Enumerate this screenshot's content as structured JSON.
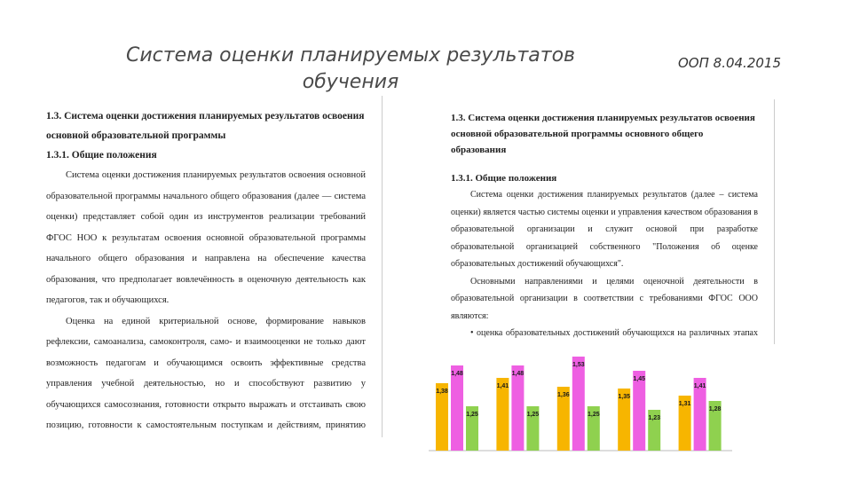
{
  "slide": {
    "title_line1": "Система оценки планируемых результатов",
    "title_line2": "обучения",
    "tag": "ООП 8.04.2015"
  },
  "left_doc": {
    "heading_a": "1.3.   Система оценки достижения планируемых результатов освоения",
    "heading_b": "основной образовательной программы",
    "subheading": "1.3.1. Общие положения",
    "para1": "Система оценки достижения планируемых результатов освоения основной образовательной программы начального общего образования (далее — система оценки) представляет собой один из инструментов реализации требований ФГОС НОО к результатам освоения основной образовательной программы начального общего образования и направлена на обеспечение качества образования, что предполагает вовлечённость в оценочную деятельность как педагогов, так и обучающихся.",
    "para2": "Оценка на единой критериальной основе, формирование навыков рефлексии, самоанализа, самоконтроля, само- и взаимооценки не только дают возможность педагогам и обучающимся освоить эффективные средства управления учебной деятельностью, но и способствуют развитию у обучающихся самосознания, готовности открыто выражать и отстаивать свою позицию, готовности к самостоятельным поступкам и действиям, принятию ответственности за их результаты."
  },
  "right_doc": {
    "heading": "1.3. Система оценки достижения планируемых результатов освоения основной образовательной программы основного общего образования",
    "subheading": "1.3.1. Общие положения",
    "para1": "Система оценки достижения планируемых результатов (далее – система оценки) является частью системы оценки и управления качеством образования в образовательной организации и служит основой при разработке образовательной организацией собственного \"Положения об оценке образовательных достижений обучающихся\".",
    "para2": "Основными направлениями и целями оценочной деятельности в образовательной организации в соответствии с требованиями ФГОС ООО являются:",
    "para3": "• оценка образовательных достижений обучающихся на различных этапах обучения как основа их промежуточной и итоговой аттестации, а также основа процедур внутреннего мониторинга образовательной организации,"
  },
  "chart_data": {
    "type": "bar",
    "categories": [
      "",
      "",
      "",
      "",
      ""
    ],
    "series": [
      {
        "color": "#f7b500",
        "values": [
          1.38,
          1.41,
          1.36,
          1.35,
          1.31
        ]
      },
      {
        "color": "#ee5fe2",
        "values": [
          1.48,
          1.48,
          1.53,
          1.45,
          1.41
        ]
      },
      {
        "color": "#8fd14f",
        "values": [
          1.25,
          1.25,
          1.25,
          1.23,
          1.28
        ]
      }
    ],
    "data_labels": [
      [
        "1,38",
        "1,41",
        "1,36",
        "1,35",
        "1,31"
      ],
      [
        "1,48",
        "1,48",
        "1,53",
        "1,45",
        "1,41"
      ],
      [
        "1,25",
        "1,25",
        "1,25",
        "1,23",
        "1,28"
      ]
    ],
    "ylim": [
      1.0,
      1.56
    ],
    "grid": false,
    "legend": "none"
  }
}
